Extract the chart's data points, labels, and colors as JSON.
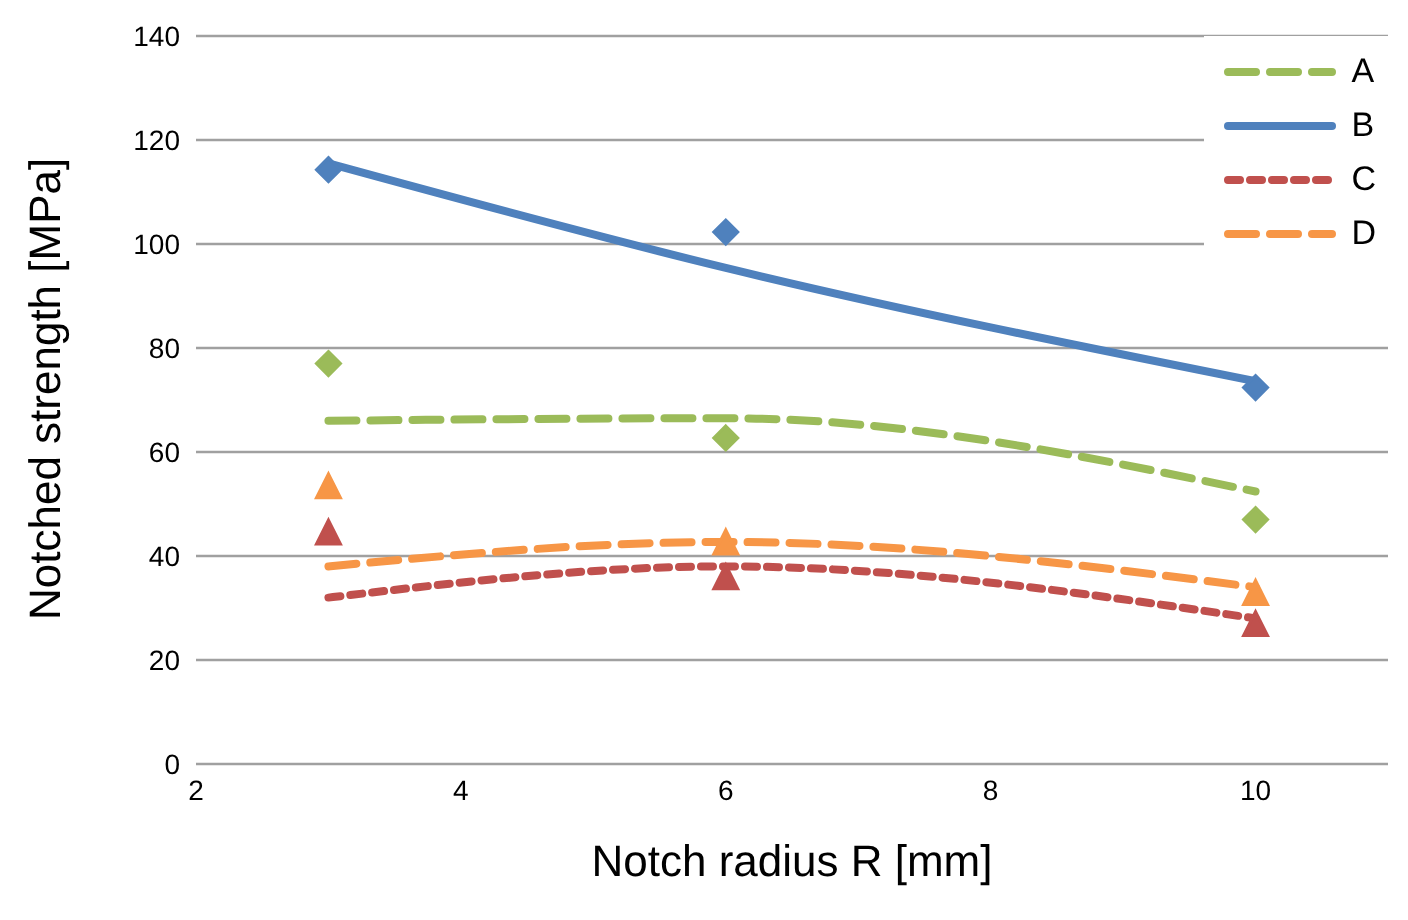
{
  "chart_data": {
    "type": "line",
    "xlabel": "Notch radius R [mm]",
    "ylabel": "Notched strength [MPa]",
    "xlim": [
      2,
      11
    ],
    "xticks": [
      2,
      4,
      6,
      8,
      10
    ],
    "ylim": [
      0,
      140
    ],
    "yticks": [
      0,
      20,
      40,
      60,
      80,
      100,
      120,
      140
    ],
    "grid": "y",
    "legend": "top right",
    "series": [
      {
        "name": "A",
        "line_style": "dashed",
        "color": "#9bbb59",
        "x": [
          3,
          6,
          10
        ],
        "values": [
          66,
          66.5,
          52.4
        ]
      },
      {
        "name": "B",
        "line_style": "solid",
        "color": "#4f81bd",
        "x": [
          3,
          6,
          10
        ],
        "values": [
          115.5,
          95.4,
          73.6
        ]
      },
      {
        "name": "C",
        "line_style": "dotted",
        "color": "#c0504d",
        "x": [
          3,
          6,
          10
        ],
        "values": [
          32,
          38,
          28
        ]
      },
      {
        "name": "D",
        "line_style": "dashed",
        "color": "#f79646",
        "x": [
          3,
          6,
          10
        ],
        "values": [
          38,
          42.7,
          34
        ]
      },
      {
        "type": "scatter",
        "marker": "diamond",
        "color": "#9bbb59",
        "x": [
          3,
          6,
          10
        ],
        "values": [
          77,
          62.7,
          47
        ]
      },
      {
        "type": "scatter",
        "marker": "diamond",
        "color": "#4f81bd",
        "x": [
          3,
          6,
          10
        ],
        "values": [
          114.3,
          102.3,
          72.4
        ]
      },
      {
        "type": "scatter",
        "marker": "triangle",
        "color": "#c0504d",
        "x": [
          3,
          6,
          10
        ],
        "values": [
          44.6,
          36,
          27
        ]
      },
      {
        "type": "scatter",
        "marker": "triangle",
        "color": "#f79646",
        "x": [
          3,
          6,
          10
        ],
        "values": [
          53.5,
          42.7,
          33
        ]
      }
    ]
  }
}
